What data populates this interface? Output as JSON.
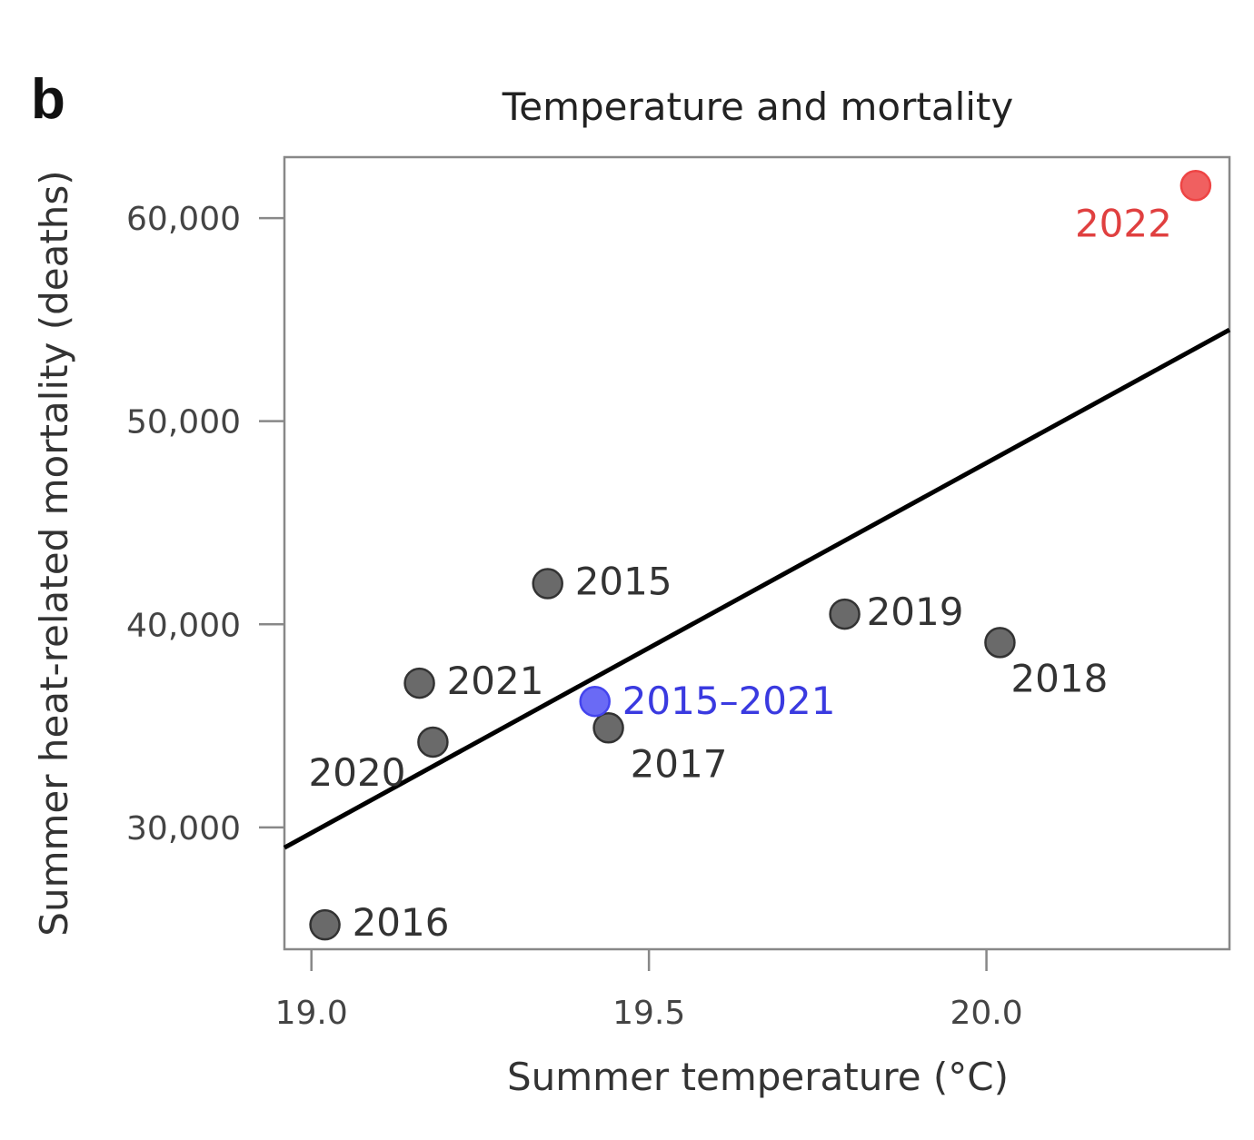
{
  "panel_label": "b",
  "chart_data": {
    "type": "scatter",
    "title": "Temperature and mortality",
    "xlabel": "Summer temperature (°C)",
    "ylabel": "Summer heat-related mortality (deaths)",
    "xlim": [
      18.96,
      20.36
    ],
    "ylim": [
      24000,
      63000
    ],
    "x_ticks": [
      19.0,
      19.5,
      20.0
    ],
    "x_tick_labels": [
      "19.0",
      "19.5",
      "20.0"
    ],
    "y_ticks": [
      30000,
      40000,
      50000,
      60000
    ],
    "y_tick_labels": [
      "30,000",
      "40,000",
      "50,000",
      "60,000"
    ],
    "grid": false,
    "colors": {
      "default": "#555555",
      "baseline": "#4444ee",
      "highlight": "#ee4444",
      "trend_line": "#000000"
    },
    "points": [
      {
        "label": "2015",
        "x": 19.35,
        "y": 42000,
        "category": "default"
      },
      {
        "label": "2016",
        "x": 19.02,
        "y": 25200,
        "category": "default"
      },
      {
        "label": "2017",
        "x": 19.44,
        "y": 34900,
        "category": "default"
      },
      {
        "label": "2018",
        "x": 20.02,
        "y": 39100,
        "category": "default"
      },
      {
        "label": "2019",
        "x": 19.79,
        "y": 40500,
        "category": "default"
      },
      {
        "label": "2020",
        "x": 19.18,
        "y": 34200,
        "category": "default"
      },
      {
        "label": "2021",
        "x": 19.16,
        "y": 37100,
        "category": "default"
      },
      {
        "label": "2015–2021",
        "x": 19.42,
        "y": 36200,
        "category": "baseline"
      },
      {
        "label": "2022",
        "x": 20.31,
        "y": 61600,
        "category": "highlight"
      }
    ],
    "trend_line": {
      "x": [
        18.96,
        20.36
      ],
      "y": [
        29000,
        54500
      ]
    }
  }
}
